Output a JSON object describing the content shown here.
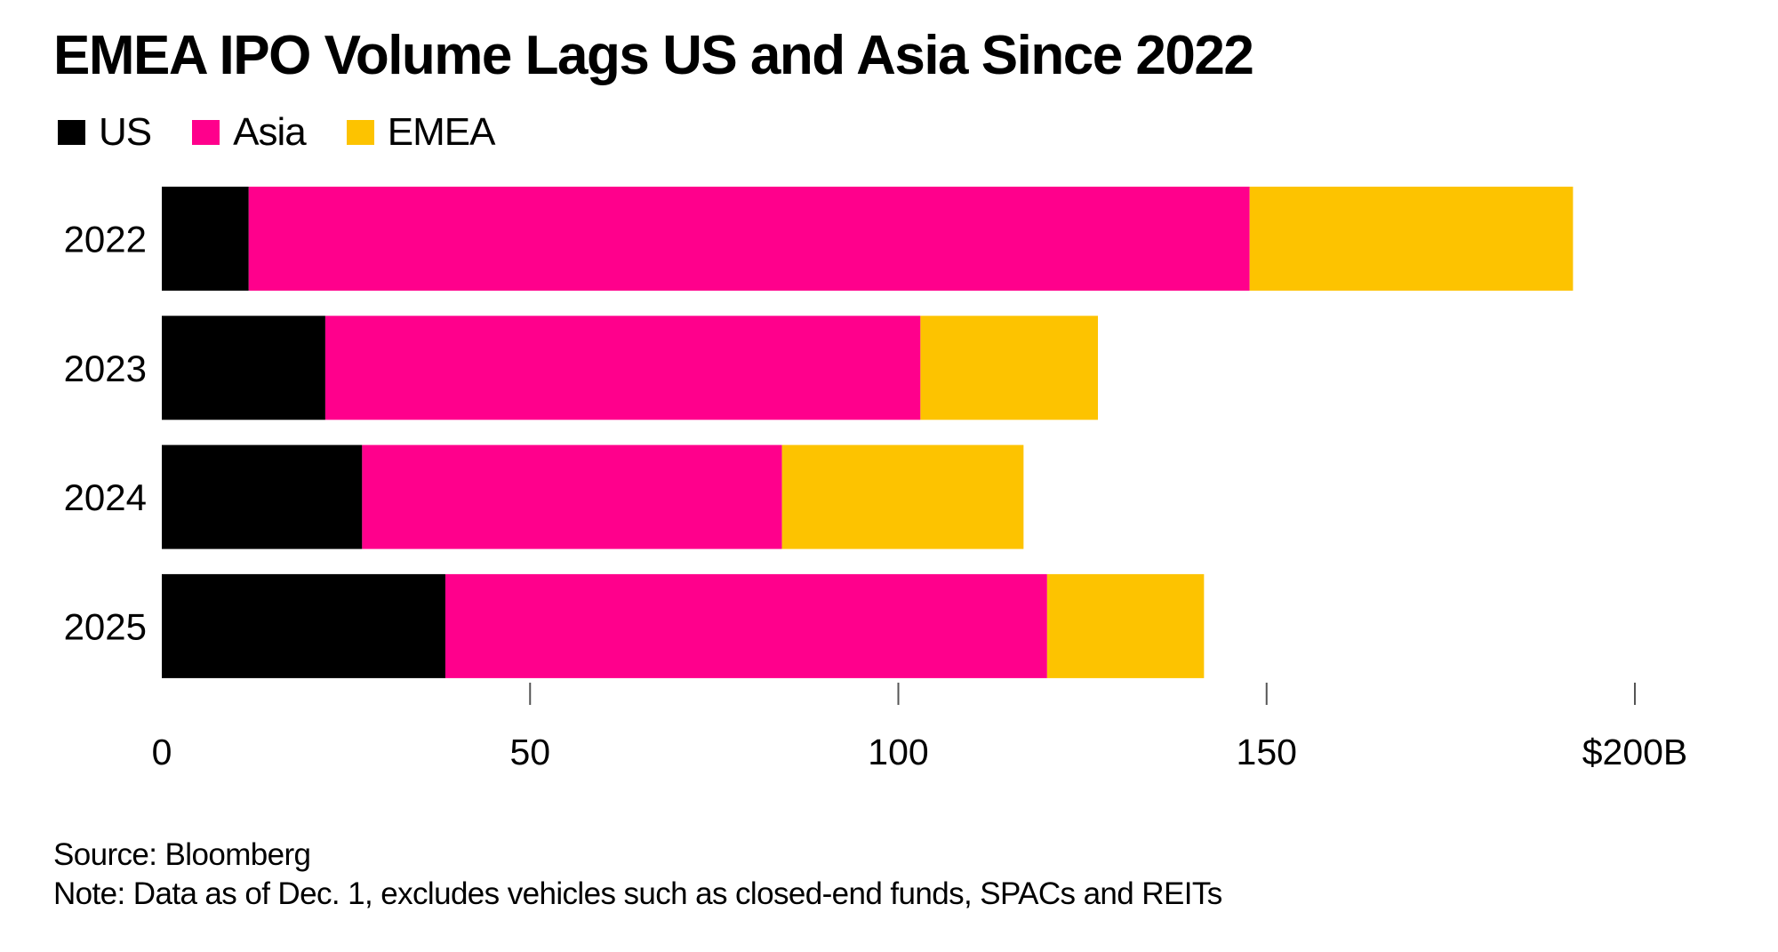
{
  "chart_data": {
    "type": "bar",
    "orientation": "horizontal",
    "stacked": true,
    "title": "EMEA IPO Volume Lags US and Asia Since 2022",
    "categories": [
      "2022",
      "2023",
      "2024",
      "2025"
    ],
    "series": [
      {
        "name": "US",
        "color": "#000000",
        "values": [
          11.8,
          22.2,
          27.2,
          38.5
        ]
      },
      {
        "name": "Asia",
        "color": "#FF008C",
        "values": [
          135.9,
          80.8,
          57.0,
          81.7
        ]
      },
      {
        "name": "EMEA",
        "color": "#FDC300",
        "values": [
          43.9,
          24.1,
          32.8,
          21.3
        ]
      }
    ],
    "xlabel": "",
    "ylabel": "",
    "xlim": [
      0,
      200
    ],
    "x_ticks": [
      0,
      50,
      100,
      150,
      200
    ],
    "x_tick_labels": [
      "0",
      "50",
      "100",
      "150",
      "$200B"
    ],
    "units": "$B",
    "grid": false,
    "legend_position": "top-left",
    "source": "Source: Bloomberg",
    "note": "Note: Data as of Dec. 1, excludes vehicles such as closed-end funds, SPACs and REITs"
  }
}
